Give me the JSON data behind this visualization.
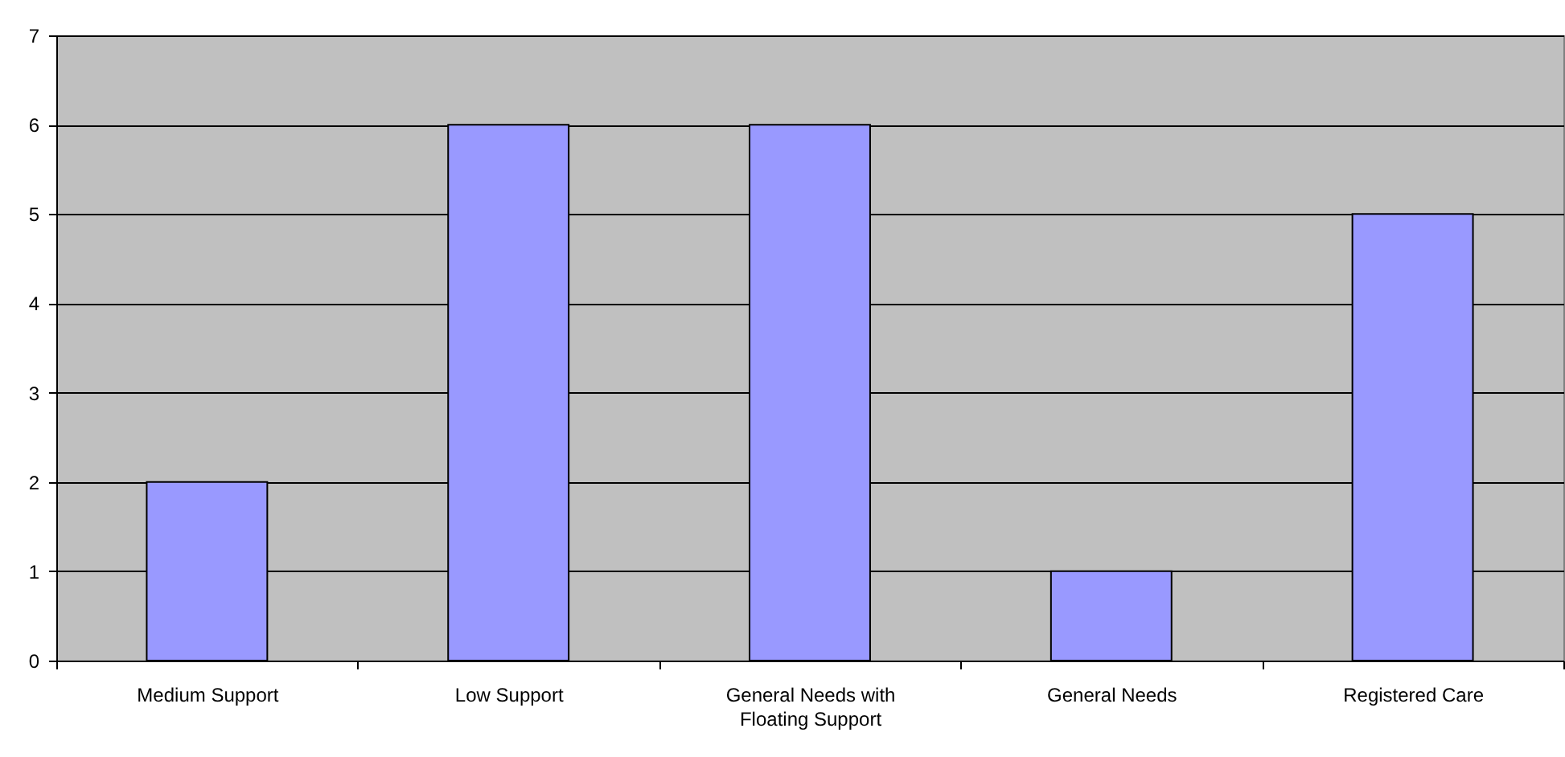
{
  "chart_data": {
    "type": "bar",
    "categories": [
      "Medium Support",
      "Low Support",
      "General Needs with Floating Support",
      "General Needs",
      "Registered Care"
    ],
    "values": [
      2,
      6,
      6,
      1,
      5
    ],
    "color": "#9999ff",
    "ylim": [
      0,
      7
    ],
    "yticks": [
      0,
      1,
      2,
      3,
      4,
      5,
      6,
      7
    ],
    "grid": "y"
  }
}
